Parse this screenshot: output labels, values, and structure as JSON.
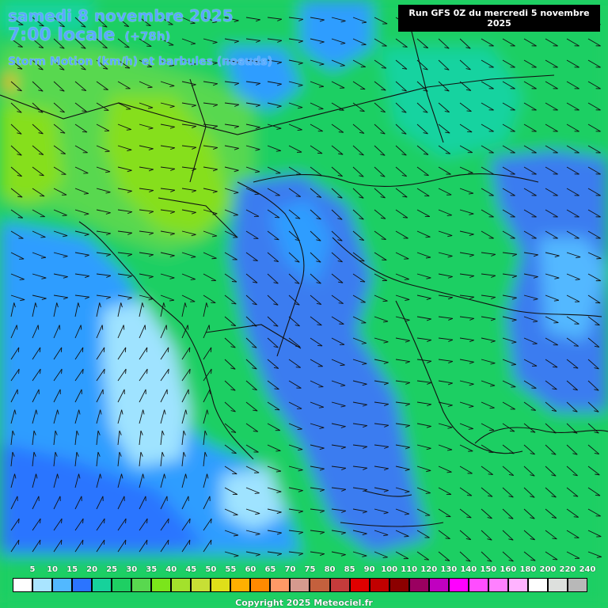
{
  "title": {
    "date": "samedi 8 novembre 2025",
    "time": "7:00 locale",
    "offset": "(+78h)",
    "parameter": "Storm Motion (km/h) et barbules (noeuds)"
  },
  "run_info": "Run GFS 0Z du mercredi 5 novembre 2025",
  "copyright": "Copyright 2025 Meteociel.fr",
  "legend": {
    "labels": [
      "5",
      "10",
      "15",
      "20",
      "25",
      "30",
      "35",
      "40",
      "45",
      "50",
      "55",
      "60",
      "65",
      "70",
      "75",
      "80",
      "85",
      "90",
      "100",
      "110",
      "120",
      "130",
      "140",
      "150",
      "160",
      "180",
      "200",
      "220",
      "240"
    ],
    "colors": [
      "#ffffff",
      "#a9e4ff",
      "#52b8ff",
      "#2b74ff",
      "#16d29b",
      "#1ecf63",
      "#59d84f",
      "#7be51b",
      "#a3e12c",
      "#c7df35",
      "#dfdf19",
      "#ffb000",
      "#ff8a00",
      "#ff9966",
      "#d59a8e",
      "#c4603d",
      "#c43b3b",
      "#e00000",
      "#c10000",
      "#8c0000",
      "#9a0060",
      "#c000c0",
      "#ff00ff",
      "#ff4dff",
      "#ff80ff",
      "#ffb3ff",
      "#ffffff",
      "#dde0dd",
      "#b8b8b8"
    ]
  },
  "map": {
    "colors": {
      "blue": "#3a7cf0",
      "light_blue": "#9fe3ff",
      "mid_blue": "#2f9dff",
      "cyan_green": "#12d3a0",
      "green": "#1fcf63",
      "lime": "#5fd92e",
      "yellow_green": "#86df1a",
      "orange": "#ffb000"
    }
  }
}
